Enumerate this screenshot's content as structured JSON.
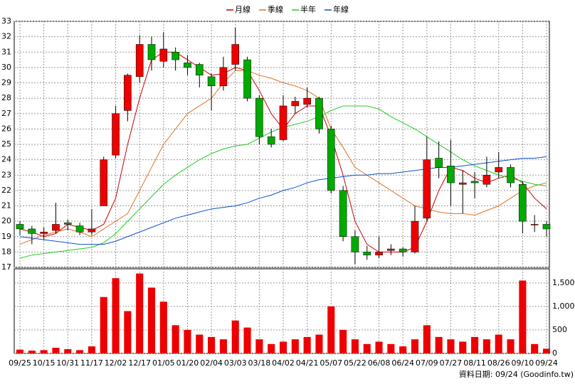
{
  "chart_data": {
    "type": "candlestick",
    "categories": [
      "09/25",
      null,
      "10/15",
      null,
      "10/31",
      null,
      "11/17",
      null,
      "12/02",
      null,
      "12/17",
      null,
      "01/05",
      null,
      "01/20",
      null,
      "02/04",
      null,
      "03/03",
      null,
      "03/18",
      null,
      "04/02",
      null,
      "04/21",
      null,
      "05/07",
      null,
      "05/22",
      null,
      "06/08",
      null,
      "06/24",
      null,
      "07/09",
      null,
      "07/27",
      null,
      "08/11",
      null,
      "08/26",
      null,
      "09/10",
      null,
      "09/24"
    ],
    "open": [
      19.8,
      19.5,
      19.2,
      19.4,
      19.9,
      19.7,
      19.3,
      21,
      24.3,
      27.2,
      29.4,
      31.5,
      30.4,
      31,
      30.3,
      30.2,
      29.4,
      28.8,
      30.2,
      30.5,
      28,
      25.5,
      25.3,
      27.5,
      27.6,
      28,
      26,
      22,
      19,
      18,
      17.8,
      18.1,
      18.2,
      18,
      20.2,
      24.1,
      23.6,
      22.4,
      22.6,
      22.4,
      23.2,
      23.5,
      22.4,
      19.8,
      19.8
    ],
    "high": [
      20,
      19.7,
      19.6,
      21.2,
      20.1,
      19.9,
      20.8,
      24.2,
      27.5,
      29.6,
      32.1,
      32,
      32.3,
      31.3,
      30.8,
      30.3,
      29.6,
      30.7,
      32.6,
      30.7,
      28.2,
      26,
      28.2,
      28.1,
      28.7,
      28.1,
      26.2,
      22.3,
      19.4,
      18.4,
      19,
      18.5,
      18.3,
      21,
      25.5,
      25.2,
      25.3,
      23.3,
      23.2,
      24.2,
      24.5,
      23.7,
      22.6,
      20.4,
      20
    ],
    "low": [
      19.1,
      18.5,
      18.8,
      19.2,
      19.4,
      19.1,
      19.1,
      21,
      24.1,
      26.5,
      29,
      29.8,
      30,
      29.8,
      29.5,
      28.7,
      27.2,
      28.5,
      29.8,
      27.8,
      25,
      24.8,
      25.2,
      27,
      27.4,
      25.7,
      21.8,
      18.7,
      17.2,
      17.5,
      17.6,
      17.8,
      17.7,
      17.9,
      20,
      22.8,
      21,
      20.5,
      21.5,
      22.2,
      22.8,
      22.2,
      19.2,
      19.3,
      19
    ],
    "close": [
      19.5,
      19.2,
      19.3,
      19.8,
      19.8,
      19.3,
      19.5,
      24,
      27,
      29.5,
      31.5,
      30.5,
      31.2,
      30.5,
      30,
      29.5,
      28.8,
      30,
      31.5,
      28,
      25.5,
      25,
      27.5,
      27.8,
      28,
      26,
      22,
      19,
      18,
      17.8,
      18,
      18.2,
      18,
      20,
      24,
      23.5,
      22.5,
      22.5,
      22.5,
      23,
      23.5,
      22.5,
      20,
      19.8,
      19.5
    ],
    "volume": [
      80,
      60,
      70,
      120,
      90,
      70,
      150,
      1200,
      1600,
      900,
      1700,
      1400,
      1100,
      600,
      500,
      400,
      350,
      300,
      700,
      550,
      300,
      200,
      250,
      300,
      350,
      400,
      1000,
      500,
      300,
      200,
      250,
      200,
      150,
      300,
      600,
      350,
      300,
      250,
      350,
      300,
      400,
      300,
      1550,
      200,
      100
    ],
    "up_color": "#ee0000",
    "down_color": "#00aa00",
    "volume_color": "#ee0000",
    "moving_averages": [
      {
        "name": "月線",
        "color": "#cc0000",
        "values": [
          19.5,
          19.3,
          19,
          19.2,
          19.8,
          19.6,
          19.4,
          19.8,
          21.5,
          25,
          28,
          30.5,
          31,
          31,
          30.5,
          30,
          29.5,
          29.6,
          30,
          29.8,
          28.5,
          27,
          26,
          27,
          27.5,
          27.5,
          25.5,
          23,
          20,
          18.5,
          18,
          18,
          18,
          18.3,
          20,
          22,
          23.5,
          23.3,
          22.8,
          22.5,
          22.8,
          23,
          22.5,
          21.5,
          20.8
        ]
      },
      {
        "name": "季線",
        "color": "#e07020",
        "values": [
          18.5,
          18.8,
          19.1,
          19.3,
          19.5,
          19.3,
          19,
          19.5,
          20,
          20.5,
          22,
          23.5,
          25,
          26,
          27,
          27.5,
          28,
          29,
          29.8,
          29.8,
          29.5,
          29.3,
          29,
          28.8,
          28.5,
          28,
          26,
          24.8,
          23.5,
          23,
          22.5,
          22,
          21.5,
          21,
          20.8,
          20.6,
          20.5,
          20.5,
          20.4,
          20.7,
          21,
          21.5,
          22,
          22.3,
          22.5
        ]
      },
      {
        "name": "半年",
        "color": "#22cc22",
        "values": [
          17.6,
          17.8,
          17.9,
          18,
          18.1,
          18.2,
          18.3,
          18.6,
          19.2,
          20,
          20.8,
          21.6,
          22.4,
          23,
          23.5,
          24,
          24.4,
          24.7,
          24.9,
          25,
          25.4,
          25.8,
          26.1,
          26.3,
          26.5,
          26.8,
          27.2,
          27.5,
          27.5,
          27.5,
          27.3,
          26.8,
          26.4,
          26,
          25.5,
          25,
          24.5,
          24,
          23.6,
          23.3,
          23,
          22.8,
          22.6,
          22.4,
          22.3
        ]
      },
      {
        "name": "年線",
        "color": "#1050cc",
        "values": [
          19,
          18.9,
          18.8,
          18.7,
          18.6,
          18.5,
          18.5,
          18.5,
          18.7,
          19,
          19.3,
          19.6,
          19.9,
          20.2,
          20.4,
          20.6,
          20.8,
          20.9,
          21,
          21.2,
          21.5,
          21.7,
          22,
          22.2,
          22.5,
          22.7,
          22.8,
          22.9,
          23,
          23,
          23.1,
          23.1,
          23.2,
          23.3,
          23.4,
          23.5,
          23.5,
          23.6,
          23.7,
          23.8,
          23.9,
          24,
          24.1,
          24.1,
          24.2
        ]
      }
    ],
    "ylim": [
      17,
      33
    ],
    "yticks": [
      17,
      18,
      19,
      20,
      21,
      22,
      23,
      24,
      25,
      26,
      27,
      28,
      29,
      30,
      31,
      32,
      33
    ],
    "volume_ylim": [
      0,
      1800
    ],
    "volume_yticks": [
      0,
      500,
      {
        "value": 1000,
        "label": "1,000"
      },
      {
        "value": 1500,
        "label": "1,500"
      }
    ],
    "grid": true,
    "footer": "資料日期: 09/24 (Goodinfo.tw)"
  }
}
